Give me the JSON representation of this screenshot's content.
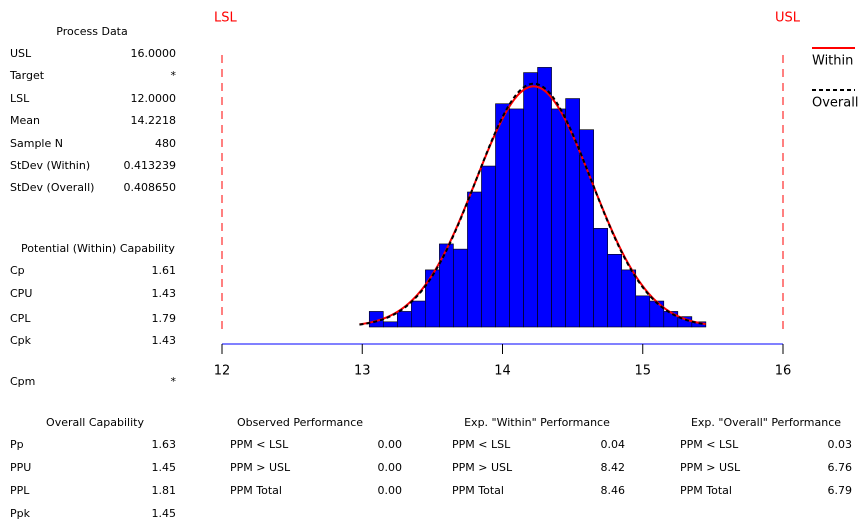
{
  "chart_data": {
    "type": "histogram",
    "bins": [
      13.05,
      13.15,
      13.25,
      13.35,
      13.45,
      13.55,
      13.65,
      13.75,
      13.85,
      13.95,
      14.05,
      14.15,
      14.25,
      14.35,
      14.45,
      14.55,
      14.65,
      14.75,
      14.85,
      14.95,
      15.05,
      15.15,
      15.25,
      15.35,
      15.45
    ],
    "values": [
      3,
      1,
      3,
      5,
      11,
      16,
      15,
      26,
      31,
      43,
      42,
      49,
      50,
      42,
      44,
      38,
      19,
      14,
      11,
      6,
      5,
      3,
      2,
      1
    ],
    "color": "#0000ff",
    "xlim": [
      12,
      16
    ],
    "xticks": [
      12,
      13,
      14,
      15,
      16
    ],
    "ylim": [
      0,
      52
    ],
    "sample_n": 480,
    "spec_lines": [
      {
        "label": "LSL",
        "value": 12
      },
      {
        "label": "USL",
        "value": 16
      }
    ],
    "spec_color": "#ff0000",
    "curves": [
      {
        "name": "Within",
        "color": "#ff0000",
        "dashed": false,
        "mean": 14.2218,
        "stdev": 0.413239
      },
      {
        "name": "Overall",
        "color": "#000000",
        "dashed": true,
        "mean": 14.2218,
        "stdev": 0.40865
      }
    ]
  },
  "process_data": {
    "title": "Process Data",
    "rows": [
      [
        "USL",
        "16.0000"
      ],
      [
        "Target",
        "*"
      ],
      [
        "LSL",
        "12.0000"
      ],
      [
        "Mean",
        "14.2218"
      ],
      [
        "Sample N",
        "480"
      ],
      [
        "StDev (Within)",
        "0.413239"
      ],
      [
        "StDev (Overall)",
        "0.408650"
      ]
    ]
  },
  "potential_capability": {
    "title": "Potential (Within) Capability",
    "rows": [
      [
        "Cp",
        "1.61"
      ],
      [
        "CPU",
        "1.43"
      ],
      [
        "CPL",
        "1.79"
      ],
      [
        "Cpk",
        "1.43"
      ],
      [
        "Cpm",
        "*"
      ]
    ]
  },
  "overall_capability": {
    "title": "Overall Capability",
    "rows": [
      [
        "Pp",
        "1.63"
      ],
      [
        "PPU",
        "1.45"
      ],
      [
        "PPL",
        "1.81"
      ],
      [
        "Ppk",
        "1.45"
      ]
    ]
  },
  "observed_performance": {
    "title": "Observed Performance",
    "rows": [
      [
        "PPM < LSL",
        "0.00"
      ],
      [
        "PPM > USL",
        "0.00"
      ],
      [
        "PPM Total",
        "0.00"
      ]
    ]
  },
  "exp_within_performance": {
    "title": "Exp. \"Within\" Performance",
    "rows": [
      [
        "PPM < LSL",
        "0.04"
      ],
      [
        "PPM > USL",
        "8.42"
      ],
      [
        "PPM Total",
        "8.46"
      ]
    ]
  },
  "exp_overall_performance": {
    "title": "Exp. \"Overall\" Performance",
    "rows": [
      [
        "PPM < LSL",
        "0.03"
      ],
      [
        "PPM > USL",
        "6.76"
      ],
      [
        "PPM Total",
        "6.79"
      ]
    ]
  }
}
